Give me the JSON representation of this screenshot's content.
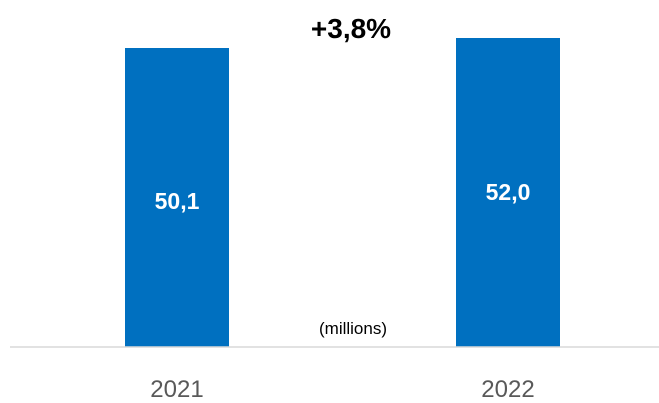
{
  "chart_data": {
    "type": "bar",
    "categories": [
      "2021",
      "2022"
    ],
    "values": [
      50.1,
      52.0
    ],
    "value_labels": [
      "50,1",
      "52,0"
    ],
    "annotation": "+3,8%",
    "unit_label": "(millions)",
    "title": "",
    "xlabel": "",
    "ylabel": "",
    "bar_color": "#0070C0",
    "axis_color": "#D9D9D9",
    "grid": false,
    "legend": "none"
  }
}
